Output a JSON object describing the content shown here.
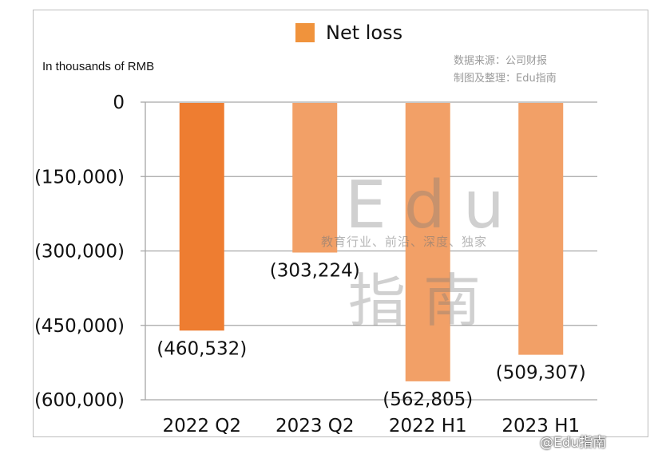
{
  "legend": {
    "label": "Net loss",
    "color": "#f0933c"
  },
  "unit_label": "In thousands of RMB",
  "source": {
    "line1": "数据来源：公司财报",
    "line2": "制图及整理：Edu指南"
  },
  "watermark": {
    "big": "Edu",
    "tagline": "教育行业、前沿、深度、独家",
    "cn": "指南"
  },
  "corner_mark": "@Edu指南",
  "colors": {
    "highlight": "#ee7d31",
    "bar": "#f2a067",
    "grid": "#a6a6a6"
  },
  "chart_data": {
    "type": "bar",
    "categories": [
      "2022 Q2",
      "2023 Q2",
      "2022 H1",
      "2023 H1"
    ],
    "values": [
      -460532,
      -303224,
      -562805,
      -509307
    ],
    "value_labels": [
      "(460,532)",
      "(303,224)",
      "(562,805)",
      "(509,307)"
    ],
    "highlight_index": 0,
    "ylim": [
      -600000,
      0
    ],
    "yticks": [
      0,
      -150000,
      -300000,
      -450000,
      -600000
    ],
    "ytick_labels": [
      "0",
      "(150,000)",
      "(300,000)",
      "(450,000)",
      "(600,000)"
    ],
    "grid": true,
    "legend_position": "top-center",
    "series": [
      {
        "name": "Net loss",
        "values": [
          -460532,
          -303224,
          -562805,
          -509307
        ]
      }
    ]
  }
}
